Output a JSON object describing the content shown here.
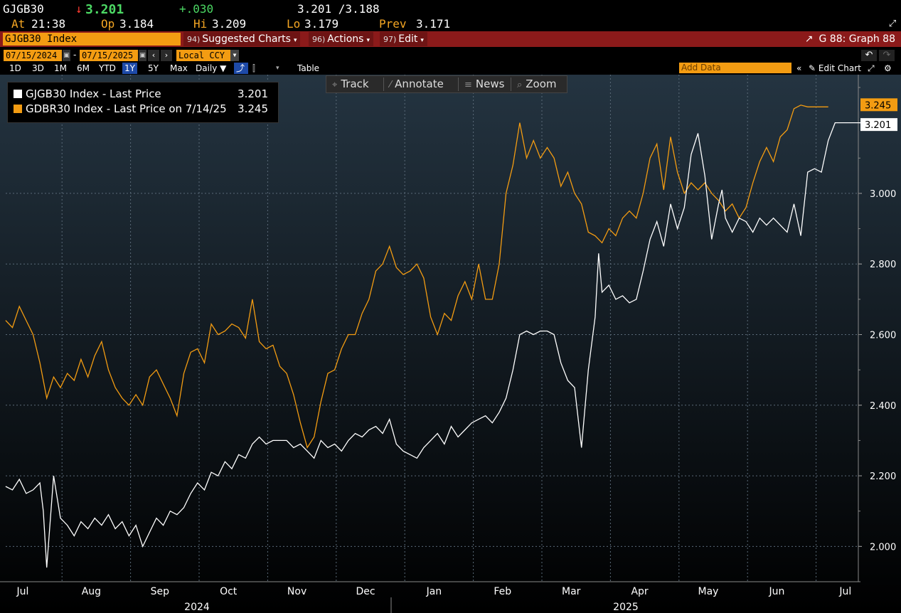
{
  "quote": {
    "ticker": "GJGB30",
    "arrow": "↓",
    "last": "3.201",
    "change": "+.030",
    "bid_ask": "3.201 /3.188",
    "at_label": "At",
    "at_time": "21:38",
    "open_label": "Op",
    "open": "3.184",
    "high_label": "Hi",
    "high": "3.209",
    "low_label": "Lo",
    "low": "3.179",
    "prev_label": "Prev",
    "prev": "3.171"
  },
  "toolbar": {
    "security": "GJGB30 Index",
    "menus": [
      {
        "num": "94)",
        "label": "Suggested Charts"
      },
      {
        "num": "96)",
        "label": "Actions"
      },
      {
        "num": "97)",
        "label": "Edit"
      }
    ],
    "graph_id": "G 88: Graph 88"
  },
  "dates": {
    "start": "07/15/2024",
    "separator": "-",
    "end": "07/15/2025",
    "currency": "Local CCY"
  },
  "ranges": [
    "1D",
    "3D",
    "1M",
    "6M",
    "YTD",
    "1Y",
    "5Y",
    "Max"
  ],
  "active_range": "1Y",
  "frequency": "Daily ▼",
  "table_label": "Table",
  "add_data_placeholder": "Add Data",
  "edit_chart_label": "Edit Chart",
  "chart_tools": [
    {
      "icon": "⌖",
      "label": "Track"
    },
    {
      "icon": "⁄",
      "label": "Annotate"
    },
    {
      "icon": "≡",
      "label": "News"
    },
    {
      "icon": "⌕",
      "label": "Zoom"
    }
  ],
  "legend": [
    {
      "name": "GJGB30 Index  - Last Price",
      "value": "3.201",
      "color": "#ffffff"
    },
    {
      "name": "GDBR30 Index  - Last Price on 7/14/25",
      "value": "3.245",
      "color": "#f39c12"
    }
  ],
  "colors": {
    "white_series": "#ffffff",
    "orange_series": "#f39c12",
    "toolbar": "#8b1a1a",
    "accent": "#f39c12"
  },
  "chart_data": {
    "type": "line",
    "x_tick_labels": [
      "Jul",
      "Aug",
      "Sep",
      "Oct",
      "Nov",
      "Dec",
      "Jan",
      "Feb",
      "Mar",
      "Apr",
      "May",
      "Jun",
      "Jul"
    ],
    "year_labels": [
      "2024",
      "2025"
    ],
    "y_tick_labels": [
      "2.000",
      "2.200",
      "2.400",
      "2.600",
      "2.800",
      "3.000"
    ],
    "ylim": [
      1.9,
      3.3
    ],
    "grid": true,
    "x_months": [
      0,
      1,
      2,
      3,
      4,
      5,
      6,
      7,
      8,
      9,
      10,
      11,
      12
    ],
    "series": [
      {
        "name": "GJGB30 Index - Last Price",
        "color": "#ffffff",
        "x": [
          0,
          0.1,
          0.2,
          0.3,
          0.4,
          0.5,
          0.55,
          0.6,
          0.7,
          0.8,
          0.9,
          1.0,
          1.1,
          1.2,
          1.3,
          1.4,
          1.5,
          1.6,
          1.7,
          1.8,
          1.9,
          2.0,
          2.1,
          2.2,
          2.3,
          2.4,
          2.5,
          2.6,
          2.7,
          2.8,
          2.9,
          3.0,
          3.1,
          3.2,
          3.3,
          3.4,
          3.5,
          3.6,
          3.7,
          3.8,
          3.9,
          4.0,
          4.1,
          4.2,
          4.3,
          4.4,
          4.5,
          4.6,
          4.7,
          4.8,
          4.9,
          5.0,
          5.1,
          5.2,
          5.3,
          5.4,
          5.5,
          5.6,
          5.7,
          5.8,
          5.9,
          6.0,
          6.1,
          6.2,
          6.3,
          6.4,
          6.5,
          6.6,
          6.7,
          6.8,
          6.9,
          7.0,
          7.1,
          7.2,
          7.3,
          7.4,
          7.5,
          7.6,
          7.7,
          7.8,
          7.9,
          8.0,
          8.1,
          8.2,
          8.3,
          8.4,
          8.5,
          8.6,
          8.65,
          8.7,
          8.8,
          8.9,
          9.0,
          9.1,
          9.2,
          9.3,
          9.4,
          9.5,
          9.6,
          9.7,
          9.8,
          9.9,
          10.0,
          10.1,
          10.2,
          10.3,
          10.4,
          10.45,
          10.5,
          10.6,
          10.7,
          10.8,
          10.9,
          11.0,
          11.1,
          11.2,
          11.3,
          11.4,
          11.5,
          11.6,
          11.7,
          11.8,
          11.9,
          12.0,
          12.1,
          12.2,
          12.3,
          12.4,
          12.5,
          12.6
        ],
        "values": [
          2.17,
          2.16,
          2.19,
          2.15,
          2.16,
          2.18,
          2.1,
          1.94,
          2.2,
          2.08,
          2.06,
          2.03,
          2.07,
          2.05,
          2.08,
          2.06,
          2.09,
          2.05,
          2.07,
          2.03,
          2.06,
          2.0,
          2.04,
          2.08,
          2.06,
          2.1,
          2.09,
          2.11,
          2.15,
          2.18,
          2.16,
          2.21,
          2.2,
          2.24,
          2.22,
          2.26,
          2.25,
          2.29,
          2.31,
          2.29,
          2.3,
          2.3,
          2.3,
          2.28,
          2.29,
          2.27,
          2.25,
          2.3,
          2.28,
          2.29,
          2.27,
          2.3,
          2.32,
          2.31,
          2.33,
          2.34,
          2.32,
          2.36,
          2.29,
          2.27,
          2.26,
          2.25,
          2.28,
          2.3,
          2.32,
          2.29,
          2.34,
          2.31,
          2.33,
          2.35,
          2.36,
          2.37,
          2.35,
          2.38,
          2.42,
          2.5,
          2.6,
          2.61,
          2.6,
          2.61,
          2.61,
          2.6,
          2.52,
          2.47,
          2.45,
          2.28,
          2.5,
          2.65,
          2.83,
          2.72,
          2.74,
          2.7,
          2.71,
          2.69,
          2.7,
          2.78,
          2.87,
          2.92,
          2.85,
          2.97,
          2.9,
          2.96,
          3.11,
          3.17,
          3.05,
          2.87,
          2.97,
          3.01,
          2.93,
          2.89,
          2.93,
          2.92,
          2.89,
          2.93,
          2.91,
          2.93,
          2.91,
          2.89,
          2.97,
          2.88,
          3.06,
          3.07,
          3.06,
          3.15,
          3.2,
          3.2,
          3.2,
          3.2,
          3.2,
          3.2
        ],
        "end_value": 3.201
      },
      {
        "name": "GDBR30 Index - Last Price on 7/14/25",
        "color": "#f39c12",
        "x": [
          0,
          0.1,
          0.2,
          0.3,
          0.4,
          0.5,
          0.6,
          0.7,
          0.8,
          0.9,
          1.0,
          1.1,
          1.2,
          1.3,
          1.4,
          1.5,
          1.6,
          1.7,
          1.8,
          1.9,
          2.0,
          2.1,
          2.2,
          2.3,
          2.4,
          2.5,
          2.6,
          2.7,
          2.8,
          2.9,
          3.0,
          3.1,
          3.2,
          3.3,
          3.4,
          3.5,
          3.6,
          3.7,
          3.8,
          3.9,
          4.0,
          4.1,
          4.2,
          4.3,
          4.4,
          4.5,
          4.6,
          4.7,
          4.8,
          4.9,
          5.0,
          5.1,
          5.2,
          5.3,
          5.4,
          5.5,
          5.6,
          5.7,
          5.8,
          5.9,
          6.0,
          6.1,
          6.2,
          6.3,
          6.4,
          6.5,
          6.6,
          6.7,
          6.8,
          6.9,
          7.0,
          7.1,
          7.2,
          7.3,
          7.4,
          7.5,
          7.6,
          7.7,
          7.8,
          7.9,
          8.0,
          8.1,
          8.2,
          8.3,
          8.4,
          8.5,
          8.6,
          8.7,
          8.8,
          8.9,
          9.0,
          9.1,
          9.2,
          9.3,
          9.4,
          9.5,
          9.6,
          9.7,
          9.8,
          9.9,
          10.0,
          10.1,
          10.2,
          10.3,
          10.4,
          10.5,
          10.6,
          10.7,
          10.8,
          10.9,
          11.0,
          11.1,
          11.2,
          11.3,
          11.4,
          11.5,
          11.6,
          11.7,
          11.8,
          11.9,
          12.0
        ],
        "values": [
          2.64,
          2.62,
          2.68,
          2.64,
          2.6,
          2.52,
          2.42,
          2.48,
          2.45,
          2.49,
          2.47,
          2.53,
          2.48,
          2.54,
          2.58,
          2.5,
          2.45,
          2.42,
          2.4,
          2.43,
          2.4,
          2.48,
          2.5,
          2.46,
          2.42,
          2.37,
          2.49,
          2.55,
          2.56,
          2.52,
          2.63,
          2.6,
          2.61,
          2.63,
          2.62,
          2.59,
          2.7,
          2.58,
          2.56,
          2.57,
          2.51,
          2.49,
          2.43,
          2.35,
          2.28,
          2.31,
          2.41,
          2.49,
          2.5,
          2.56,
          2.6,
          2.6,
          2.66,
          2.7,
          2.78,
          2.8,
          2.85,
          2.79,
          2.77,
          2.78,
          2.8,
          2.76,
          2.65,
          2.6,
          2.66,
          2.64,
          2.71,
          2.75,
          2.7,
          2.8,
          2.7,
          2.7,
          2.8,
          3.0,
          3.08,
          3.2,
          3.1,
          3.15,
          3.1,
          3.13,
          3.1,
          3.02,
          3.06,
          3.0,
          2.97,
          2.89,
          2.88,
          2.86,
          2.9,
          2.88,
          2.93,
          2.95,
          2.93,
          3.0,
          3.1,
          3.14,
          3.01,
          3.16,
          3.06,
          3.0,
          3.03,
          3.01,
          3.03,
          3.0,
          2.98,
          2.95,
          2.97,
          2.93,
          2.96,
          3.03,
          3.09,
          3.13,
          3.09,
          3.16,
          3.18,
          3.24,
          3.25,
          3.245,
          3.245,
          3.245,
          3.245
        ],
        "end_value": 3.245
      }
    ]
  }
}
